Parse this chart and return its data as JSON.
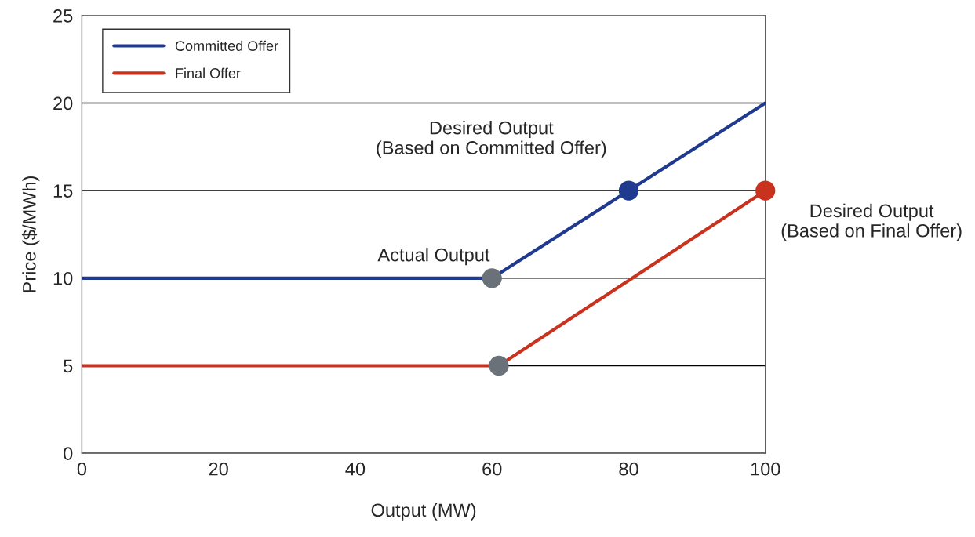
{
  "chart_data": {
    "type": "line",
    "xlabel": "Output (MW)",
    "ylabel": "Price ($/MWh)",
    "xlim": [
      0,
      100
    ],
    "xticks": [
      0,
      20,
      40,
      60,
      80,
      100
    ],
    "ylim": [
      0,
      25
    ],
    "yticks": [
      0,
      5,
      10,
      15,
      20,
      25
    ],
    "grid": "y",
    "legend": "top left",
    "marker": "none",
    "line_style": "solid",
    "series": [
      {
        "name": "Committed Offer",
        "color": "#1f3a8f",
        "x": [
          0,
          60,
          100
        ],
        "values": [
          10,
          10,
          20
        ]
      },
      {
        "name": "Final Offer",
        "color": "#c8321e",
        "x": [
          0,
          61,
          100
        ],
        "values": [
          5,
          5,
          15
        ]
      },
      {
        "type": "scatter",
        "color": "#6b7178",
        "x": [
          60,
          61
        ],
        "values": [
          10,
          5
        ],
        "marker": "circle"
      },
      {
        "type": "scatter",
        "color": "#1f3a8f",
        "x": [
          80
        ],
        "values": [
          15
        ],
        "marker": "circle"
      },
      {
        "type": "scatter",
        "color": "#c8321e",
        "x": [
          100
        ],
        "values": [
          15
        ],
        "marker": "circle"
      }
    ],
    "annotations": [
      {
        "text": "Desired Output\n(Based on Committed Offer)",
        "x": 80,
        "y": 15
      },
      {
        "text": "Actual Output",
        "x": 60,
        "y": 10
      },
      {
        "text": "Desired Output\n(Based on Final Offer)",
        "x": 100,
        "y": 15
      }
    ]
  }
}
